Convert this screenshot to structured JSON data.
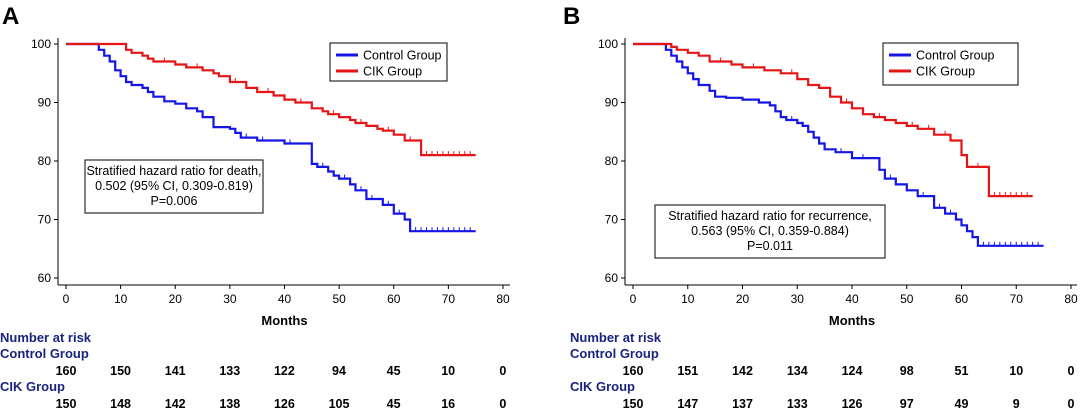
{
  "chart_data": [
    {
      "type": "line",
      "panel_label": "A",
      "xlabel": "Months",
      "ylabel": "",
      "xlim": [
        0,
        80
      ],
      "ylim": [
        60,
        100
      ],
      "xticks": [
        0,
        10,
        20,
        30,
        40,
        50,
        60,
        70,
        80
      ],
      "yticks": [
        60,
        70,
        80,
        90,
        100
      ],
      "grid": false,
      "legend_position": "top-right",
      "series": [
        {
          "name": "Control Group",
          "color": "#1515e6",
          "x": [
            0,
            5,
            6,
            7,
            8,
            9,
            10,
            11,
            12,
            14,
            15,
            16,
            18,
            20,
            22,
            24,
            25,
            27,
            30,
            31,
            32,
            35,
            40,
            45,
            46,
            48,
            49,
            50,
            52,
            53,
            55,
            58,
            60,
            62,
            63,
            75
          ],
          "y": [
            100,
            100,
            99,
            98,
            97,
            95.5,
            94.5,
            93.5,
            93,
            92.5,
            91.8,
            91,
            90.2,
            89.8,
            89,
            88.5,
            87.5,
            85.8,
            85.5,
            84.8,
            84,
            83.5,
            83,
            79.5,
            79,
            78.2,
            77.5,
            77,
            76,
            75,
            73.5,
            72.5,
            71,
            70,
            68,
            68
          ],
          "censor_x": [
            33,
            36,
            41,
            47,
            51,
            54,
            56,
            59,
            61,
            64,
            65,
            66,
            67,
            68,
            69,
            70,
            71,
            72,
            73,
            74
          ]
        },
        {
          "name": "CIK Group",
          "color": "#e61515",
          "x": [
            0,
            10,
            11,
            12,
            14,
            15,
            16,
            20,
            22,
            25,
            27,
            28,
            30,
            33,
            35,
            38,
            40,
            42,
            45,
            47,
            48,
            50,
            52,
            53,
            55,
            57,
            58,
            60,
            62,
            65,
            75
          ],
          "y": [
            100,
            100,
            99,
            98.5,
            98,
            97.5,
            97,
            96.5,
            96,
            95.5,
            95,
            94.5,
            93.5,
            92.5,
            91.8,
            91.2,
            90.5,
            90,
            89,
            88.5,
            88,
            87.5,
            87,
            86.5,
            86,
            85.5,
            85.2,
            84.5,
            83.5,
            81,
            81
          ],
          "censor_x": [
            18,
            24,
            31,
            37,
            43,
            49,
            54,
            59,
            63,
            66,
            67,
            68,
            69,
            70,
            71,
            72,
            73,
            74
          ]
        }
      ],
      "annotation_lines": [
        "Stratified hazard ratio for death,",
        "0.502 (95% CI, 0.309-0.819)",
        "P=0.006"
      ],
      "risk_table": {
        "title": "Number at risk",
        "groups": [
          {
            "name": "Control Group",
            "values": [
              "160",
              "150",
              "141",
              "133",
              "122",
              "94",
              "45",
              "10",
              "0"
            ]
          },
          {
            "name": "CIK Group",
            "values": [
              "150",
              "148",
              "142",
              "138",
              "126",
              "105",
              "45",
              "16",
              "0"
            ]
          }
        ]
      }
    },
    {
      "type": "line",
      "panel_label": "B",
      "xlabel": "Months",
      "ylabel": "",
      "xlim": [
        0,
        80
      ],
      "ylim": [
        60,
        100
      ],
      "xticks": [
        0,
        10,
        20,
        30,
        40,
        50,
        60,
        70,
        80
      ],
      "yticks": [
        60,
        70,
        80,
        90,
        100
      ],
      "grid": false,
      "legend_position": "top-right",
      "series": [
        {
          "name": "Control Group",
          "color": "#1515e6",
          "x": [
            0,
            5,
            6,
            7,
            8,
            9,
            10,
            11,
            12,
            14,
            15,
            17,
            20,
            23,
            25,
            26,
            27,
            28,
            30,
            31,
            32,
            33,
            34,
            35,
            37,
            40,
            45,
            46,
            48,
            50,
            52,
            55,
            57,
            59,
            60,
            61,
            62,
            63,
            75
          ],
          "y": [
            100,
            100,
            99,
            98,
            97,
            96,
            95,
            94,
            93,
            92,
            91,
            90.8,
            90.5,
            90,
            89.5,
            88.5,
            87.5,
            87,
            86.5,
            86,
            85,
            84,
            83,
            82,
            81.5,
            80.5,
            78.5,
            77,
            76,
            75,
            74,
            72,
            71,
            70,
            69,
            68,
            67,
            65.5,
            65.5
          ],
          "censor_x": [
            29,
            38,
            42,
            47,
            53,
            56,
            58,
            64,
            65,
            66,
            67,
            68,
            69,
            70,
            71,
            72,
            73,
            74
          ]
        },
        {
          "name": "CIK Group",
          "color": "#e61515",
          "x": [
            0,
            5,
            7,
            8,
            10,
            12,
            14,
            18,
            20,
            24,
            27,
            30,
            32,
            34,
            36,
            38,
            40,
            42,
            44,
            46,
            48,
            50,
            52,
            55,
            58,
            60,
            61,
            65,
            73
          ],
          "y": [
            100,
            100,
            99.5,
            99,
            98.5,
            98,
            97,
            96.5,
            96,
            95.5,
            95,
            94,
            93,
            92.5,
            91,
            90,
            89,
            88,
            87.5,
            87,
            86.5,
            86,
            85.5,
            84.5,
            83.5,
            81,
            79,
            74,
            74
          ],
          "censor_x": [
            16,
            22,
            29,
            39,
            45,
            51,
            54,
            57,
            63,
            66,
            67,
            68,
            69,
            70,
            71,
            72
          ]
        }
      ],
      "annotation_lines": [
        "Stratified hazard ratio for recurrence,",
        "0.563 (95% CI, 0.359-0.884)",
        "P=0.011"
      ],
      "risk_table": {
        "title": "Number at risk",
        "groups": [
          {
            "name": "Control Group",
            "values": [
              "160",
              "151",
              "142",
              "134",
              "124",
              "98",
              "51",
              "10",
              "0"
            ]
          },
          {
            "name": "CIK Group",
            "values": [
              "150",
              "147",
              "137",
              "133",
              "126",
              "97",
              "49",
              "9",
              "0"
            ]
          }
        ]
      }
    }
  ]
}
